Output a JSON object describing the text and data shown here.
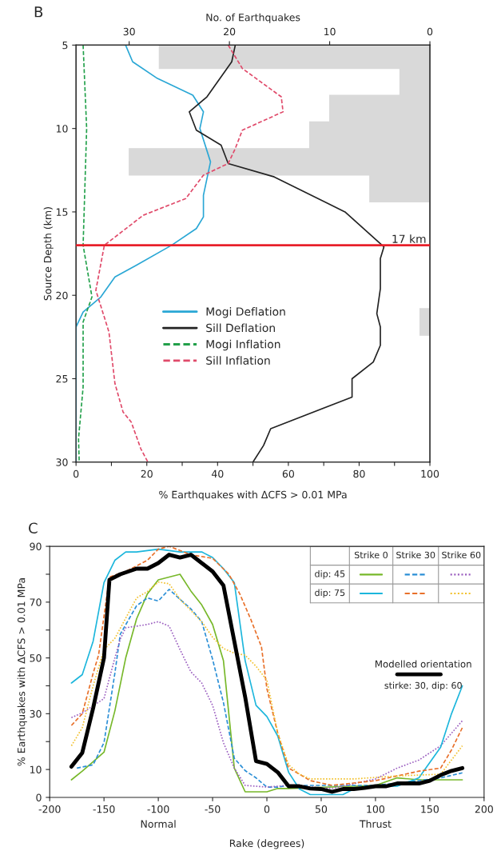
{
  "chart_data": [
    {
      "type": "line",
      "title": "B",
      "orientation": "horizontal",
      "xlabel": "% Earthquakes with ΔCFS > 0.01 MPa",
      "ylabel": "Source Depth (km)",
      "x2label": "No. of Earthquakes",
      "xlim": [
        0,
        100
      ],
      "xticks": [
        0,
        {
          "value": 10,
          "label": null
        },
        20,
        {
          "value": 30,
          "label": null
        },
        40,
        {
          "value": 50,
          "label": null
        },
        60,
        {
          "value": 70,
          "label": null
        },
        80,
        {
          "value": 90,
          "label": null
        },
        100
      ],
      "ylim": [
        30,
        5
      ],
      "yticks": [
        5,
        10,
        15,
        20,
        25,
        30
      ],
      "x2lim": [
        35.3,
        0
      ],
      "x2ticks": [
        30,
        20,
        10,
        0
      ],
      "legend": "center",
      "grid": false,
      "ref_lines": [
        {
          "axis": "y",
          "value": 17,
          "label": "17 km",
          "color": "#e8202a"
        }
      ],
      "series": [
        {
          "type": "histogram",
          "axis": "x2",
          "color": "#d9d9d9",
          "bins": [
            5,
            6.4,
            8.0,
            9.6,
            11.2,
            12.8,
            14.4,
            16.0,
            17.6,
            19.2,
            20.8,
            22.4
          ],
          "values": [
            27,
            3,
            10,
            12,
            30,
            6,
            0,
            0,
            0,
            0,
            1
          ]
        },
        {
          "name": "Mogi Deflation",
          "color": "#2aa7d5",
          "line_style": "solid",
          "x": [
            5,
            6,
            7,
            8,
            9,
            10,
            12,
            14,
            15.3,
            16,
            17,
            18.2,
            18.9,
            20.1,
            21,
            21.9,
            30
          ],
          "values": [
            14,
            16,
            23,
            33,
            36,
            35,
            38,
            36,
            36,
            34,
            27,
            17,
            11,
            7,
            2,
            0,
            0
          ]
        },
        {
          "name": "Sill Deflation",
          "color": "#222222",
          "line_style": "solid",
          "x": [
            5,
            6,
            8.1,
            9,
            10.1,
            11,
            12.1,
            12.9,
            15,
            17.1,
            17.8,
            19.6,
            21.1,
            21.9,
            23,
            24,
            25,
            26.1,
            28,
            29,
            30
          ],
          "values": [
            45,
            44,
            37,
            32,
            34,
            41,
            43,
            56,
            76,
            87,
            86,
            86,
            85,
            86,
            86,
            84,
            78,
            78,
            55,
            53,
            50
          ]
        },
        {
          "name": "Mogi Inflation",
          "color": "#22a04a",
          "line_style": "dashed",
          "x": [
            5,
            10,
            17,
            20.1,
            21.6,
            25.5,
            28.6,
            30
          ],
          "values": [
            2,
            3,
            2,
            4.5,
            2,
            2,
            0.7,
            0.9
          ]
        },
        {
          "name": "Sill Inflation",
          "color": "#e04a6a",
          "line_style": "dashed",
          "x": [
            5,
            6.4,
            8.1,
            9,
            10.1,
            11.2,
            12.1,
            12.8,
            14.2,
            15.2,
            17,
            19.7,
            22.2,
            25.3,
            27,
            27.6,
            29.2,
            30
          ],
          "values": [
            43,
            47,
            58,
            58.5,
            47,
            45,
            43,
            36,
            31,
            19,
            8,
            5.6,
            9.3,
            11,
            13.3,
            15.6,
            18.3,
            20.3
          ]
        }
      ]
    },
    {
      "type": "line",
      "title": "C",
      "xlabel": "Rake (degrees)",
      "ylabel": "% Earthquakes with ΔCFS > 0.01 MPa",
      "xlim": [
        -200,
        200
      ],
      "xticks": [
        -200,
        -150,
        -100,
        -50,
        0,
        50,
        100,
        150,
        200
      ],
      "ylim": [
        0,
        90
      ],
      "yticks": [
        0,
        10,
        {
          "value": 20,
          "label": null
        },
        30,
        {
          "value": 40,
          "label": null
        },
        50,
        {
          "value": 60,
          "label": null
        },
        70,
        {
          "value": 80,
          "label": null
        },
        90
      ],
      "grid": false,
      "annotations": [
        "Strike 0",
        "Strike 30",
        "Strike 60",
        "dip: 45",
        "dip: 75",
        "Modelled orientation",
        "stirke: 30, dip: 60",
        "Normal",
        "Thrust"
      ],
      "series": [
        {
          "color": "#77b82a",
          "line_style": "solid",
          "x": [
            -180,
            -170,
            -160,
            -150,
            -140,
            -130,
            -120,
            -110,
            -100,
            -80,
            -70,
            -60,
            -50,
            -40,
            -30,
            -20,
            0,
            10,
            20,
            100,
            120,
            140,
            180
          ],
          "values": [
            6.3,
            9.4,
            12.8,
            16.2,
            31,
            50,
            64,
            73,
            78,
            80,
            74,
            69,
            62,
            49,
            10.5,
            2,
            2,
            3.2,
            3.2,
            4.3,
            7,
            6.3,
            6.3
          ]
        },
        {
          "color": "#2b8fd6",
          "line_style": "dashed",
          "x": [
            -175,
            -160,
            -150,
            -140,
            -135,
            -120,
            -110,
            -100,
            -90,
            -80,
            -70,
            -60,
            -50,
            -40,
            -30,
            -20,
            -10,
            0,
            10,
            20,
            100,
            140,
            160,
            180
          ],
          "values": [
            10.5,
            11.7,
            19.6,
            44.5,
            58.5,
            68.7,
            71.5,
            70.4,
            74.6,
            71,
            67.6,
            63,
            49.5,
            34,
            14,
            9.6,
            7,
            3.7,
            3.7,
            4.3,
            4.3,
            6,
            7,
            8.8
          ]
        },
        {
          "color": "#9b5fc0",
          "line_style": "dotted",
          "x": [
            -180,
            -170,
            -150,
            -140,
            -135,
            -130,
            -110,
            -100,
            -90,
            -80,
            -70,
            -60,
            -50,
            -40,
            -30,
            -20,
            0,
            20,
            60,
            100,
            120,
            140,
            160,
            180
          ],
          "values": [
            28.6,
            30.3,
            35.4,
            50,
            56.8,
            60.8,
            62,
            63,
            61.4,
            53,
            45,
            41,
            33,
            19.6,
            10.5,
            4.3,
            3.7,
            4.3,
            3.2,
            6.6,
            10.5,
            13.4,
            18.5,
            27.5
          ]
        },
        {
          "color": "#1cb6dc",
          "line_style": "solid",
          "x": [
            -180,
            -170,
            -160,
            -150,
            -140,
            -130,
            -120,
            -100,
            -80,
            -60,
            -50,
            -40,
            -30,
            -20,
            -10,
            0,
            10,
            20,
            30,
            40,
            70,
            80,
            100,
            120,
            140,
            160,
            170,
            180
          ],
          "values": [
            41,
            44,
            56,
            77,
            85,
            88,
            88,
            89,
            88,
            88,
            86,
            82,
            77,
            49,
            33,
            29,
            22,
            9,
            3,
            1,
            1,
            3,
            4,
            4,
            7,
            18,
            30,
            40
          ]
        },
        {
          "color": "#e8702a",
          "line_style": "dashed",
          "x": [
            -180,
            -170,
            -160,
            -155,
            -145,
            -130,
            -110,
            -100,
            -90,
            -70,
            -50,
            -35,
            -25,
            -15,
            -5,
            0,
            10,
            20,
            30,
            40,
            60,
            100,
            140,
            160,
            170,
            180
          ],
          "values": [
            25.8,
            30,
            44.5,
            51,
            79,
            81,
            85,
            89,
            90,
            87,
            85.7,
            80,
            73,
            64,
            54,
            39,
            23,
            10.5,
            8.3,
            6,
            4.3,
            6,
            9.4,
            10.5,
            17,
            25
          ]
        },
        {
          "color": "#f2c12e",
          "line_style": "dotted",
          "x": [
            -180,
            -170,
            -160,
            -150,
            -140,
            -120,
            -110,
            -100,
            -90,
            -80,
            -60,
            -50,
            -40,
            -30,
            -20,
            -10,
            0,
            10,
            20,
            30,
            40,
            80,
            120,
            160,
            180
          ],
          "values": [
            18.5,
            25,
            40,
            53,
            57,
            71.5,
            73.8,
            77.2,
            76.6,
            71,
            63,
            57.4,
            53.4,
            51.7,
            51,
            47,
            42,
            23,
            11.7,
            8.3,
            6.6,
            6.6,
            7.7,
            8.3,
            18.5
          ]
        },
        {
          "color": "#000000",
          "line_style": "solid",
          "x": [
            -180,
            -170,
            -160,
            -150,
            -145,
            -135,
            -120,
            -110,
            -100,
            -90,
            -80,
            -70,
            -60,
            -50,
            -40,
            -30,
            -20,
            -10,
            0,
            10,
            20,
            30,
            40,
            50,
            60,
            70,
            80,
            90,
            100,
            110,
            120,
            130,
            140,
            150,
            160,
            170,
            180
          ],
          "values": [
            11,
            16,
            32,
            50,
            78,
            80,
            82,
            82,
            84,
            87,
            86,
            87,
            84,
            81,
            76,
            56,
            36,
            13,
            12,
            9,
            4,
            4,
            3.2,
            3,
            2,
            3,
            3,
            3.4,
            4,
            4,
            5,
            5,
            5,
            6,
            8,
            9.5,
            10.5
          ]
        }
      ]
    }
  ]
}
